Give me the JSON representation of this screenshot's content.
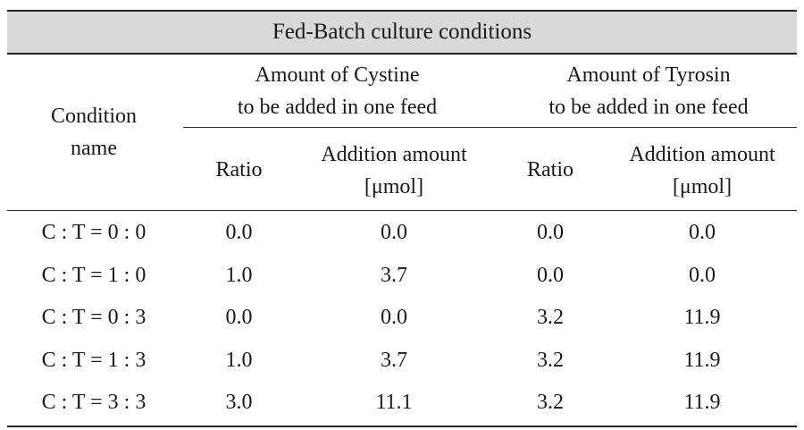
{
  "table": {
    "title": "Fed-Batch culture conditions",
    "header": {
      "condition": [
        "Condition",
        "name"
      ],
      "cystine_group": [
        "Amount of Cystine",
        "to be added in one feed"
      ],
      "tyrosin_group": [
        "Amount of Tyrosin",
        "to be added in one feed"
      ],
      "ratio": "Ratio",
      "addition_amount": [
        "Addition amount",
        "[μmol]"
      ]
    },
    "rows": [
      {
        "name": "C : T = 0 : 0",
        "cys_ratio": "0.0",
        "cys_amount": "0.0",
        "tyr_ratio": "0.0",
        "tyr_amount": "0.0"
      },
      {
        "name": "C : T = 1 : 0",
        "cys_ratio": "1.0",
        "cys_amount": "3.7",
        "tyr_ratio": "0.0",
        "tyr_amount": "0.0"
      },
      {
        "name": "C : T = 0 : 3",
        "cys_ratio": "0.0",
        "cys_amount": "0.0",
        "tyr_ratio": "3.2",
        "tyr_amount": "11.9"
      },
      {
        "name": "C : T = 1 : 3",
        "cys_ratio": "1.0",
        "cys_amount": "3.7",
        "tyr_ratio": "3.2",
        "tyr_amount": "11.9"
      },
      {
        "name": "C : T = 3 : 3",
        "cys_ratio": "3.0",
        "cys_amount": "11.1",
        "tyr_ratio": "3.2",
        "tyr_amount": "11.9"
      }
    ]
  }
}
